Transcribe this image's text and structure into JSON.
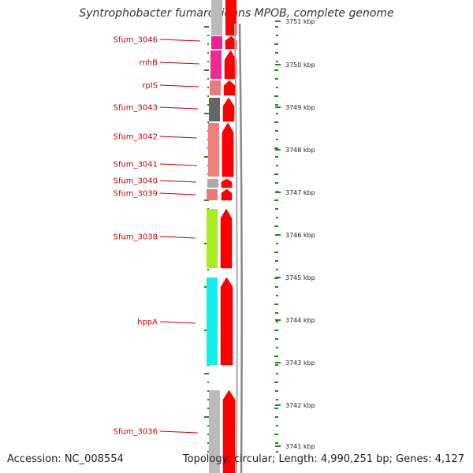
{
  "title": "Syntrophobacter fumaroxidans MPOB, complete genome",
  "accession": "Accession: NC_008554",
  "topology": "Topology: circular; Length: 4,990,251 bp; Genes: 4,127",
  "colors": {
    "gene_label": "#cc0000",
    "arrow": "#ff0000",
    "tick": "#1a8c1a",
    "backbone": "#888888"
  },
  "scale_labels": [
    "3751 kbp",
    "3750 kbp",
    "3749 kbp",
    "3748 kbp",
    "3747 kbp",
    "3746 kbp",
    "3745 kbp",
    "3744 kbp",
    "3743 kbp",
    "3742 kbp",
    "3741 kbp"
  ],
  "genes": [
    {
      "label": "Sfum_3046",
      "color": "#ee1f8f"
    },
    {
      "label": "rnhB",
      "color": "#ee2a95"
    },
    {
      "label": "rplS",
      "color": "#e57d7d"
    },
    {
      "label": "Sfum_3043",
      "color": "#666666"
    },
    {
      "label": "Sfum_3042",
      "color": "#ee8080"
    },
    {
      "label": "Sfum_3041",
      "color": "#ee8080"
    },
    {
      "label": "Sfum_3040",
      "color": "#aaaaaa"
    },
    {
      "label": "Sfum_3039",
      "color": "#ee7777"
    },
    {
      "label": "Sfum_3038",
      "color": "#a8ee22"
    },
    {
      "label": "hppA",
      "color": "#11eeee"
    },
    {
      "label": "Sfum_3036",
      "color": "#bbbbbb"
    }
  ]
}
